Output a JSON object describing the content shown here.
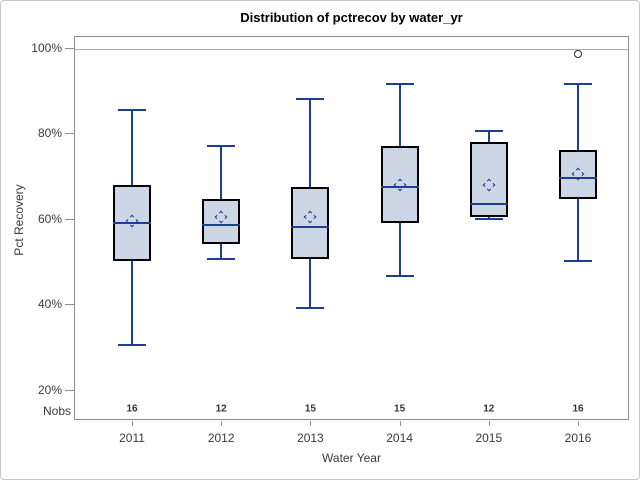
{
  "figure": {
    "title": "Distribution of pctrecov by water_yr"
  },
  "chart_data": {
    "type": "boxplot",
    "title": "Distribution of pctrecov by water_yr",
    "xlabel": "Water Year",
    "ylabel": "Pct Recovery",
    "nobs_label": "Nobs",
    "y_axis": {
      "tick_values": [
        100,
        80,
        60,
        40,
        20
      ],
      "tick_labels": [
        "100%",
        "80%",
        "60%",
        "40%",
        "20%"
      ],
      "unit": "percent",
      "visible_range": [
        12.9,
        102.7
      ],
      "reference_line_at": 100,
      "grid": false
    },
    "categories": [
      "2011",
      "2012",
      "2013",
      "2014",
      "2015",
      "2016"
    ],
    "boxes": [
      {
        "category": "2011",
        "nobs": 16,
        "whisker_low": 30.5,
        "q1": 50,
        "median": 59,
        "mean": 59.5,
        "q3": 68,
        "whisker_high": 85.5,
        "outliers": []
      },
      {
        "category": "2012",
        "nobs": 12,
        "whisker_low": 50.5,
        "q1": 54,
        "median": 58.5,
        "mean": 60.5,
        "q3": 64.5,
        "whisker_high": 77,
        "outliers": []
      },
      {
        "category": "2013",
        "nobs": 15,
        "whisker_low": 39,
        "q1": 50.5,
        "median": 58,
        "mean": 60.5,
        "q3": 67.5,
        "whisker_high": 88,
        "outliers": []
      },
      {
        "category": "2014",
        "nobs": 15,
        "whisker_low": 46.5,
        "q1": 59,
        "median": 67.5,
        "mean": 68,
        "q3": 77,
        "whisker_high": 91.5,
        "outliers": []
      },
      {
        "category": "2015",
        "nobs": 12,
        "whisker_low": 60,
        "q1": 60.5,
        "median": 63.5,
        "mean": 68,
        "q3": 78,
        "whisker_high": 80.5,
        "outliers": []
      },
      {
        "category": "2016",
        "nobs": 16,
        "whisker_low": 50,
        "q1": 64.5,
        "median": 69.5,
        "mean": 70.5,
        "q3": 76,
        "whisker_high": 91.5,
        "outliers": [
          98.5
        ]
      }
    ],
    "legend": "none",
    "colors": {
      "box_fill": "#ccd6e4",
      "box_border": "#000000",
      "whisker_median_mean_line": "#1c3e94",
      "outlier_stroke": "#2e2e2e",
      "frame_gray": "#8f8f8f",
      "reference_line_gray": "#ababab",
      "label_text": "#3a3a3a",
      "title_text": "#000000"
    }
  }
}
